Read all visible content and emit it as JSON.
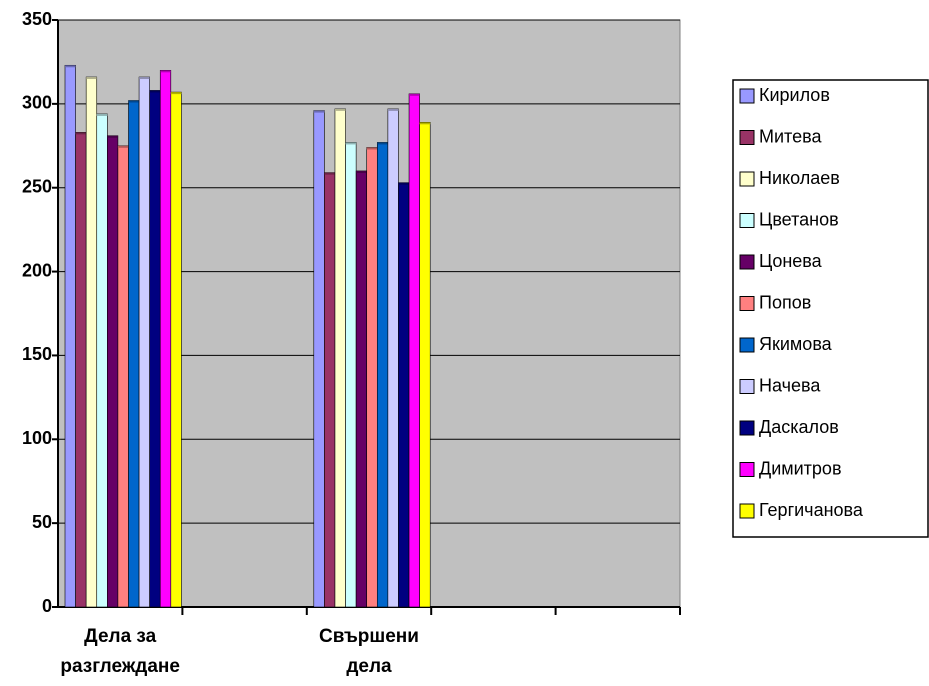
{
  "chart_data": {
    "type": "bar",
    "categories": [
      "Дела за разглеждане",
      null,
      "Свършени дела",
      null,
      null
    ],
    "series": [
      {
        "name": "Кирилов",
        "color": "#9999ff",
        "values": [
          323,
          null,
          296,
          null,
          null
        ]
      },
      {
        "name": "Митева",
        "color": "#993366",
        "values": [
          283,
          null,
          259,
          null,
          null
        ]
      },
      {
        "name": "Николаев",
        "color": "#ffffcc",
        "values": [
          316,
          null,
          297,
          null,
          null
        ]
      },
      {
        "name": "Цветанов",
        "color": "#ccffff",
        "values": [
          294,
          null,
          277,
          null,
          null
        ]
      },
      {
        "name": "Цонева",
        "color": "#660066",
        "values": [
          281,
          null,
          260,
          null,
          null
        ]
      },
      {
        "name": "Попов",
        "color": "#ff8080",
        "values": [
          275,
          null,
          274,
          null,
          null
        ]
      },
      {
        "name": "Якимова",
        "color": "#0066cc",
        "values": [
          302,
          null,
          277,
          null,
          null
        ]
      },
      {
        "name": "Начева",
        "color": "#ccccff",
        "values": [
          316,
          null,
          297,
          null,
          null
        ]
      },
      {
        "name": "Даскалов",
        "color": "#000080",
        "values": [
          308,
          null,
          253,
          null,
          null
        ]
      },
      {
        "name": "Димитров",
        "color": "#ff00ff",
        "values": [
          320,
          null,
          306,
          null,
          null
        ]
      },
      {
        "name": "Гергичанова",
        "color": "#ffff00",
        "values": [
          307,
          null,
          289,
          null,
          null
        ]
      }
    ],
    "ylim": [
      0,
      350
    ],
    "yticks": [
      0,
      50,
      100,
      150,
      200,
      250,
      300,
      350
    ],
    "grid": true,
    "legend": "right",
    "plot_background": "#c0c0c0"
  }
}
